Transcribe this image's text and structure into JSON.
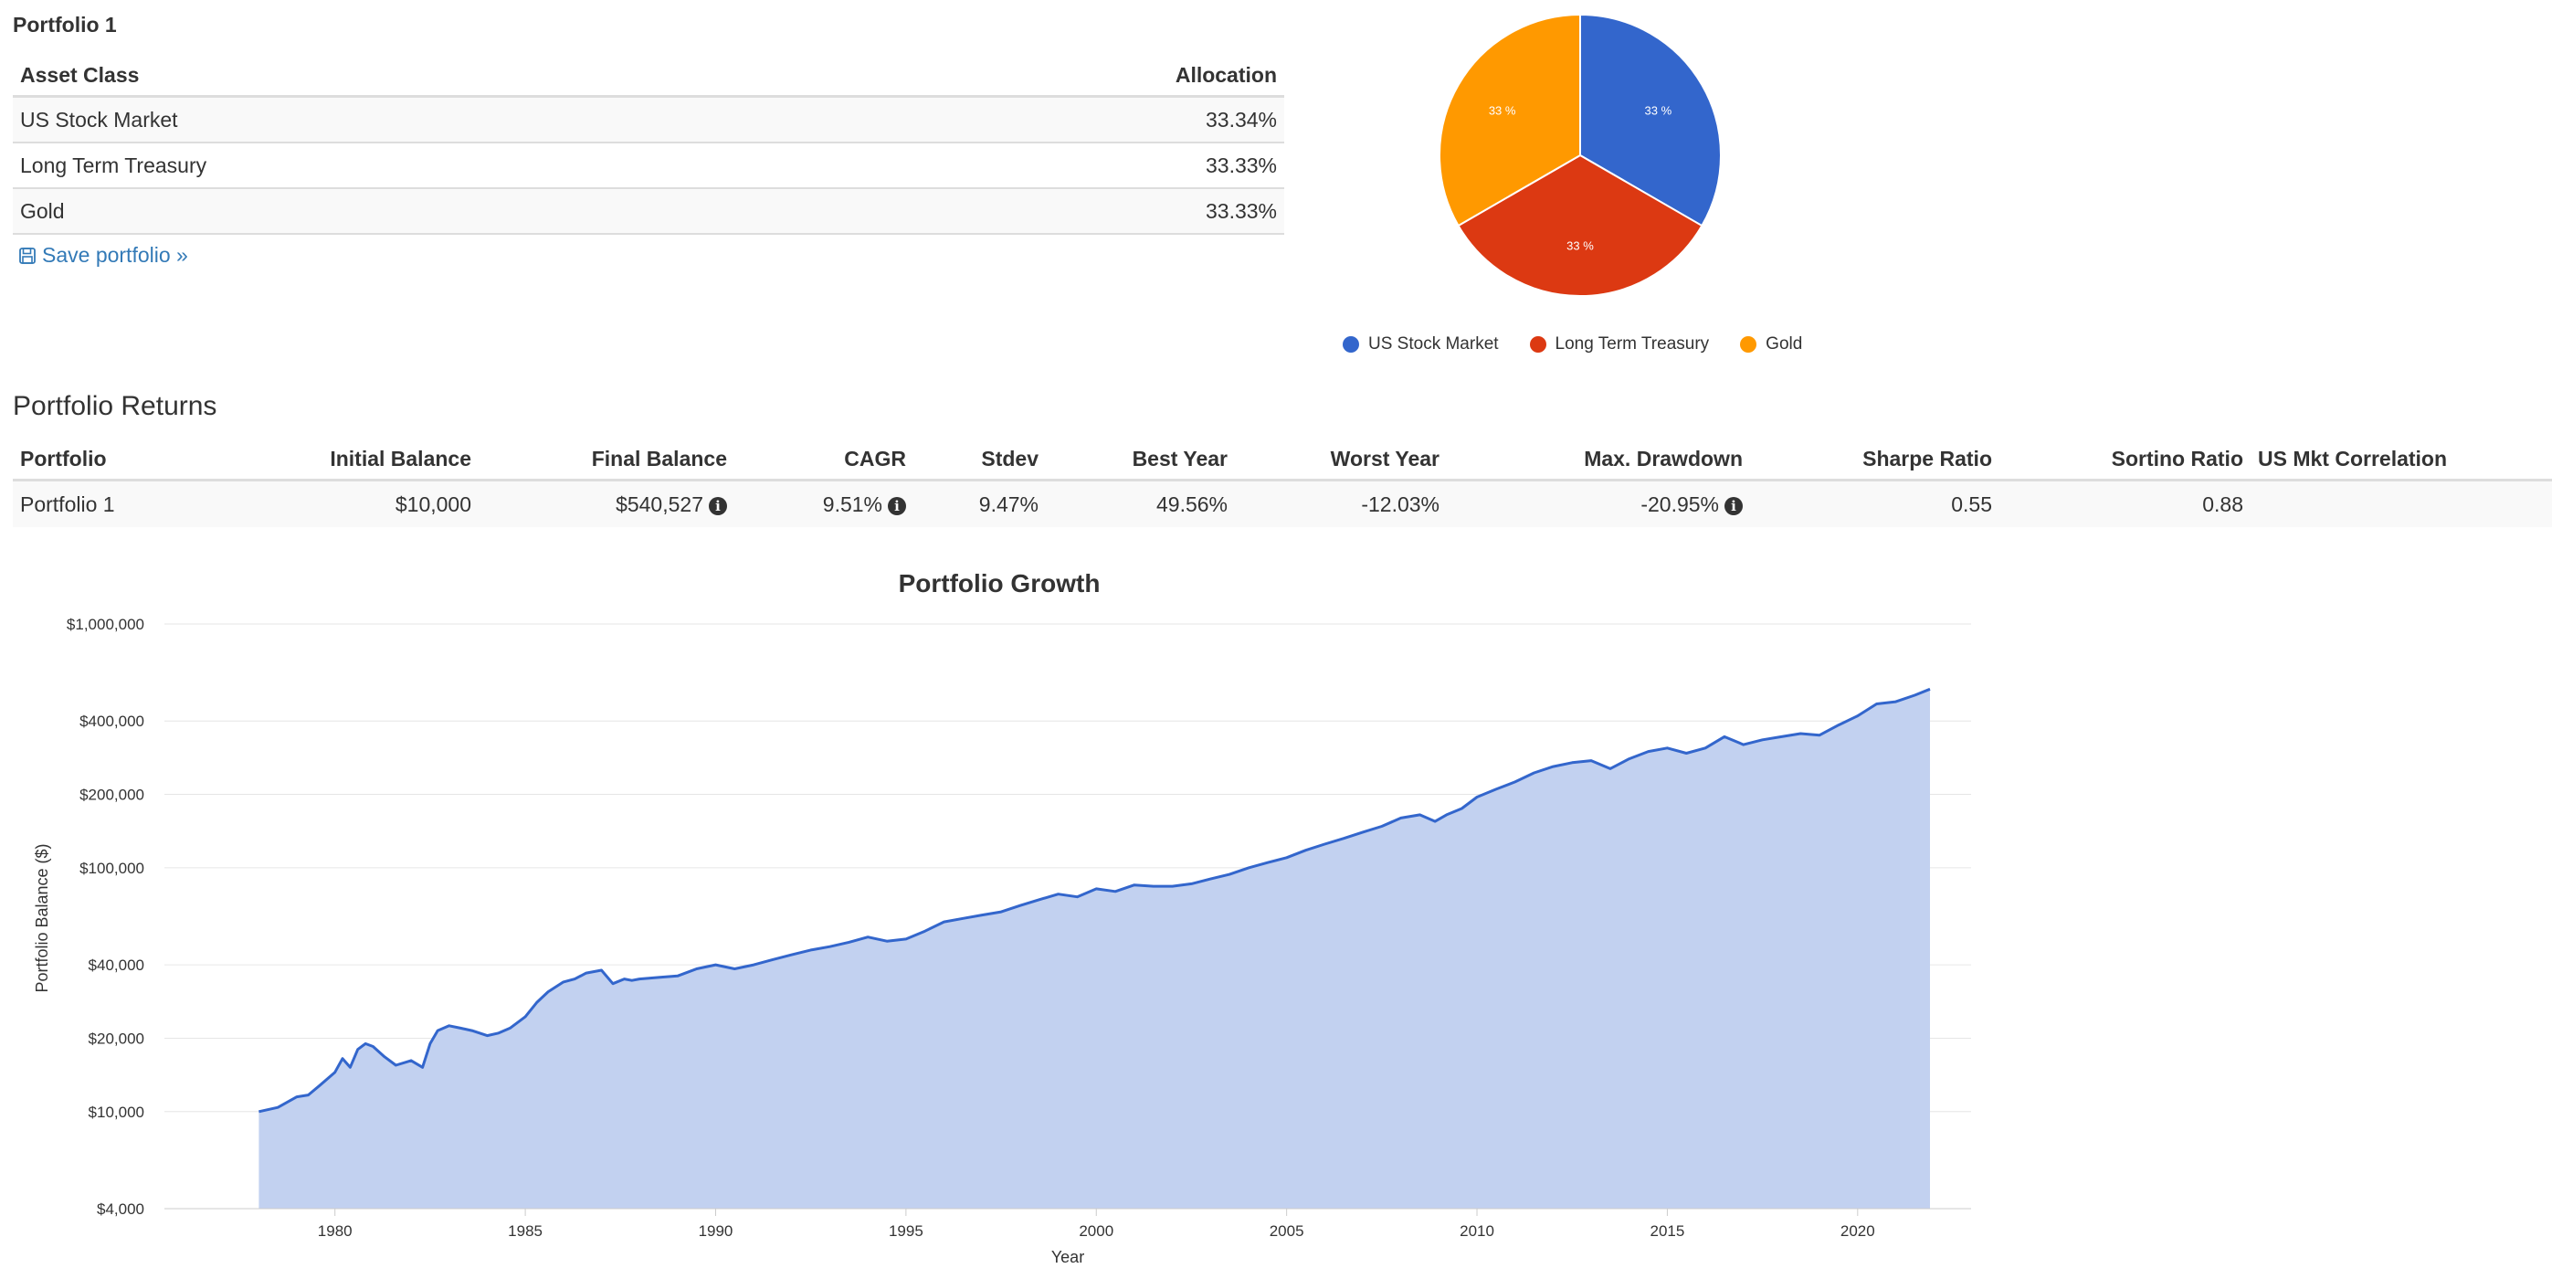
{
  "portfolio": {
    "title": "Portfolio 1",
    "headers": {
      "asset": "Asset Class",
      "allocation": "Allocation"
    },
    "rows": [
      {
        "asset": "US Stock Market",
        "allocation": "33.34%"
      },
      {
        "asset": "Long Term Treasury",
        "allocation": "33.33%"
      },
      {
        "asset": "Gold",
        "allocation": "33.33%"
      }
    ],
    "save_label": "Save portfolio »"
  },
  "pie": {
    "slices": [
      {
        "name": "US Stock Market",
        "label": "33 %",
        "value": 33.34,
        "color": "#3366cc"
      },
      {
        "name": "Long Term Treasury",
        "label": "33 %",
        "value": 33.33,
        "color": "#dc3912"
      },
      {
        "name": "Gold",
        "label": "33 %",
        "value": 33.33,
        "color": "#ff9900"
      }
    ]
  },
  "returns": {
    "title": "Portfolio Returns",
    "headers": [
      "Portfolio",
      "Initial Balance",
      "Final Balance",
      "CAGR",
      "Stdev",
      "Best Year",
      "Worst Year",
      "Max. Drawdown",
      "Sharpe Ratio",
      "Sortino Ratio",
      "US Mkt Correlation"
    ],
    "row": [
      "Portfolio 1",
      "$10,000",
      "$540,527",
      "9.51%",
      "9.47%",
      "49.56%",
      "-12.03%",
      "-20.95%",
      "0.55",
      "0.88",
      ""
    ]
  },
  "chart_data": {
    "type": "area",
    "title": "Portfolio Growth",
    "xlabel": "Year",
    "ylabel": "Portfolio Balance ($)",
    "y_scale": "log",
    "ylim": [
      4000,
      1000000
    ],
    "xlim": [
      1976,
      2022.5
    ],
    "yticks": [
      {
        "value": 4000,
        "label": "$4,000"
      },
      {
        "value": 10000,
        "label": "$10,000"
      },
      {
        "value": 20000,
        "label": "$20,000"
      },
      {
        "value": 40000,
        "label": "$40,000"
      },
      {
        "value": 100000,
        "label": "$100,000"
      },
      {
        "value": 200000,
        "label": "$200,000"
      },
      {
        "value": 400000,
        "label": "$400,000"
      },
      {
        "value": 1000000,
        "label": "$1,000,000"
      }
    ],
    "xticks": [
      {
        "value": 1980,
        "label": "1980"
      },
      {
        "value": 1985,
        "label": "1985"
      },
      {
        "value": 1990,
        "label": "1990"
      },
      {
        "value": 1995,
        "label": "1995"
      },
      {
        "value": 2000,
        "label": "2000"
      },
      {
        "value": 2005,
        "label": "2005"
      },
      {
        "value": 2010,
        "label": "2010"
      },
      {
        "value": 2015,
        "label": "2015"
      },
      {
        "value": 2020,
        "label": "2020"
      }
    ],
    "line_color": "#3366cc",
    "fill_color": "#c2d1f0",
    "series": [
      {
        "x": [
          1978.0,
          1978.5,
          1979.0,
          1979.3,
          1979.6,
          1980.0,
          1980.2,
          1980.4,
          1980.6,
          1980.8,
          1981.0,
          1981.3,
          1981.6,
          1982.0,
          1982.3,
          1982.5,
          1982.7,
          1983.0,
          1983.3,
          1983.6,
          1984.0,
          1984.3,
          1984.6,
          1985.0,
          1985.3,
          1985.6,
          1986.0,
          1986.3,
          1986.6,
          1987.0,
          1987.3,
          1987.6,
          1987.8,
          1988.0,
          1988.5,
          1989.0,
          1989.5,
          1990.0,
          1990.5,
          1991.0,
          1991.5,
          1992.0,
          1992.5,
          1993.0,
          1993.5,
          1994.0,
          1994.5,
          1995.0,
          1995.5,
          1996.0,
          1996.5,
          1997.0,
          1997.5,
          1998.0,
          1998.5,
          1999.0,
          1999.5,
          2000.0,
          2000.5,
          2001.0,
          2001.5,
          2002.0,
          2002.5,
          2003.0,
          2003.5,
          2004.0,
          2004.5,
          2005.0,
          2005.5,
          2006.0,
          2006.5,
          2007.0,
          2007.5,
          2008.0,
          2008.5,
          2008.9,
          2009.2,
          2009.6,
          2010.0,
          2010.5,
          2011.0,
          2011.5,
          2012.0,
          2012.5,
          2013.0,
          2013.5,
          2014.0,
          2014.5,
          2015.0,
          2015.5,
          2016.0,
          2016.5,
          2017.0,
          2017.5,
          2018.0,
          2018.5,
          2019.0,
          2019.5,
          2020.0,
          2020.5,
          2021.0,
          2021.5,
          2021.9
        ],
        "values": [
          10000,
          10400,
          11500,
          11700,
          12800,
          14500,
          16500,
          15200,
          18000,
          19000,
          18500,
          16800,
          15500,
          16200,
          15200,
          19000,
          21500,
          22500,
          22000,
          21500,
          20500,
          21000,
          22000,
          24500,
          28000,
          31000,
          34000,
          35000,
          37000,
          38000,
          33500,
          35000,
          34500,
          35000,
          35500,
          36000,
          38500,
          40000,
          38500,
          40000,
          42000,
          44000,
          46000,
          47500,
          49500,
          52000,
          50000,
          51000,
          55000,
          60000,
          62000,
          64000,
          66000,
          70000,
          74000,
          78000,
          76000,
          82000,
          80000,
          85000,
          84000,
          84000,
          86000,
          90000,
          94000,
          100000,
          105000,
          110000,
          118000,
          125000,
          132000,
          140000,
          148000,
          160000,
          165000,
          155000,
          165000,
          175000,
          195000,
          210000,
          225000,
          245000,
          260000,
          270000,
          275000,
          255000,
          280000,
          300000,
          310000,
          295000,
          310000,
          345000,
          320000,
          335000,
          345000,
          355000,
          350000,
          385000,
          420000,
          470000,
          480000,
          510000,
          540527
        ]
      }
    ]
  }
}
